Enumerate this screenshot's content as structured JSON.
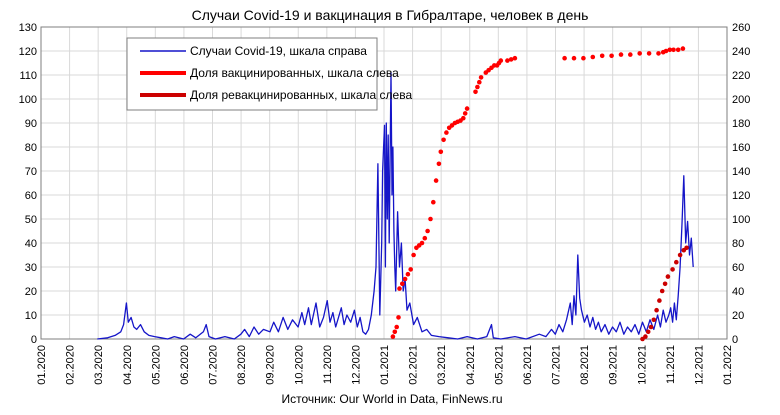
{
  "chart_data": {
    "type": "line",
    "title": "Случаи Covid-19 и вакцинация в Гибралтаре, человек в день",
    "source": "Источник: Our World in Data, FinNews.ru",
    "x_tick_labels": [
      "01.2020",
      "02.2020",
      "03.2020",
      "04.2020",
      "05.2020",
      "06.2020",
      "07.2020",
      "08.2020",
      "09.2020",
      "10.2020",
      "11.2020",
      "12.2020",
      "01.2021",
      "02.2021",
      "03.2021",
      "04.2021",
      "05.2021",
      "06.2021",
      "07.2021",
      "08.2021",
      "09.2021",
      "10.2021",
      "11.2021",
      "12.2021",
      "01.2022"
    ],
    "x_range": [
      "2020-01-01",
      "2022-01-01"
    ],
    "y_left": {
      "range": [
        0,
        130
      ],
      "ticks": [
        0,
        10,
        20,
        30,
        40,
        50,
        60,
        70,
        80,
        90,
        100,
        110,
        120,
        130
      ]
    },
    "y_right": {
      "range": [
        0,
        260
      ],
      "ticks": [
        0,
        20,
        40,
        60,
        80,
        100,
        120,
        140,
        160,
        180,
        200,
        220,
        240,
        260
      ]
    },
    "grid": true,
    "legend_position": "top-left",
    "series": [
      {
        "name": "Случаи Covid-19, шкала справа",
        "axis": "right",
        "color": "#1515c8",
        "points": [
          [
            "2020-03-01",
            0
          ],
          [
            "2020-03-12",
            1
          ],
          [
            "2020-03-20",
            3
          ],
          [
            "2020-03-26",
            6
          ],
          [
            "2020-03-29",
            12
          ],
          [
            "2020-04-01",
            30
          ],
          [
            "2020-04-03",
            14
          ],
          [
            "2020-04-06",
            18
          ],
          [
            "2020-04-09",
            10
          ],
          [
            "2020-04-12",
            8
          ],
          [
            "2020-04-16",
            12
          ],
          [
            "2020-04-20",
            6
          ],
          [
            "2020-04-25",
            3
          ],
          [
            "2020-05-01",
            2
          ],
          [
            "2020-05-08",
            1
          ],
          [
            "2020-05-15",
            0
          ],
          [
            "2020-05-22",
            2
          ],
          [
            "2020-06-01",
            0
          ],
          [
            "2020-06-08",
            4
          ],
          [
            "2020-06-14",
            1
          ],
          [
            "2020-06-22",
            6
          ],
          [
            "2020-06-25",
            12
          ],
          [
            "2020-06-28",
            2
          ],
          [
            "2020-07-05",
            0
          ],
          [
            "2020-07-15",
            2
          ],
          [
            "2020-07-25",
            0
          ],
          [
            "2020-08-01",
            4
          ],
          [
            "2020-08-05",
            8
          ],
          [
            "2020-08-10",
            2
          ],
          [
            "2020-08-15",
            10
          ],
          [
            "2020-08-20",
            4
          ],
          [
            "2020-08-25",
            8
          ],
          [
            "2020-09-01",
            6
          ],
          [
            "2020-09-05",
            14
          ],
          [
            "2020-09-10",
            6
          ],
          [
            "2020-09-15",
            18
          ],
          [
            "2020-09-20",
            8
          ],
          [
            "2020-09-25",
            16
          ],
          [
            "2020-10-01",
            10
          ],
          [
            "2020-10-05",
            22
          ],
          [
            "2020-10-08",
            12
          ],
          [
            "2020-10-12",
            26
          ],
          [
            "2020-10-15",
            12
          ],
          [
            "2020-10-20",
            30
          ],
          [
            "2020-10-24",
            10
          ],
          [
            "2020-10-28",
            18
          ],
          [
            "2020-11-01",
            32
          ],
          [
            "2020-11-04",
            14
          ],
          [
            "2020-11-07",
            22
          ],
          [
            "2020-11-10",
            10
          ],
          [
            "2020-11-13",
            18
          ],
          [
            "2020-11-16",
            26
          ],
          [
            "2020-11-19",
            12
          ],
          [
            "2020-11-22",
            20
          ],
          [
            "2020-11-26",
            14
          ],
          [
            "2020-11-30",
            24
          ],
          [
            "2020-12-03",
            10
          ],
          [
            "2020-12-06",
            18
          ],
          [
            "2020-12-09",
            6
          ],
          [
            "2020-12-12",
            4
          ],
          [
            "2020-12-15",
            8
          ],
          [
            "2020-12-18",
            20
          ],
          [
            "2020-12-21",
            40
          ],
          [
            "2020-12-23",
            60
          ],
          [
            "2020-12-25",
            146
          ],
          [
            "2020-12-27",
            20
          ],
          [
            "2020-12-29",
            80
          ],
          [
            "2020-12-30",
            140
          ],
          [
            "2021-01-01",
            178
          ],
          [
            "2021-01-02",
            60
          ],
          [
            "2021-01-03",
            180
          ],
          [
            "2021-01-04",
            100
          ],
          [
            "2021-01-05",
            170
          ],
          [
            "2021-01-06",
            80
          ],
          [
            "2021-01-08",
            222
          ],
          [
            "2021-01-09",
            120
          ],
          [
            "2021-01-10",
            160
          ],
          [
            "2021-01-11",
            90
          ],
          [
            "2021-01-12",
            60
          ],
          [
            "2021-01-13",
            40
          ],
          [
            "2021-01-15",
            106
          ],
          [
            "2021-01-17",
            60
          ],
          [
            "2021-01-19",
            80
          ],
          [
            "2021-01-21",
            40
          ],
          [
            "2021-01-23",
            50
          ],
          [
            "2021-01-25",
            24
          ],
          [
            "2021-01-28",
            30
          ],
          [
            "2021-02-01",
            12
          ],
          [
            "2021-02-05",
            18
          ],
          [
            "2021-02-10",
            6
          ],
          [
            "2021-02-15",
            8
          ],
          [
            "2021-02-20",
            3
          ],
          [
            "2021-02-28",
            2
          ],
          [
            "2021-03-10",
            1
          ],
          [
            "2021-03-20",
            0
          ],
          [
            "2021-03-30",
            2
          ],
          [
            "2021-04-10",
            0
          ],
          [
            "2021-04-20",
            2
          ],
          [
            "2021-04-25",
            12
          ],
          [
            "2021-04-27",
            1
          ],
          [
            "2021-05-05",
            0
          ],
          [
            "2021-05-20",
            2
          ],
          [
            "2021-06-01",
            0
          ],
          [
            "2021-06-15",
            4
          ],
          [
            "2021-06-22",
            2
          ],
          [
            "2021-06-28",
            8
          ],
          [
            "2021-07-02",
            4
          ],
          [
            "2021-07-06",
            12
          ],
          [
            "2021-07-10",
            6
          ],
          [
            "2021-07-14",
            16
          ],
          [
            "2021-07-18",
            30
          ],
          [
            "2021-07-20",
            12
          ],
          [
            "2021-07-22",
            36
          ],
          [
            "2021-07-24",
            20
          ],
          [
            "2021-07-26",
            70
          ],
          [
            "2021-07-28",
            34
          ],
          [
            "2021-07-30",
            24
          ],
          [
            "2021-08-02",
            14
          ],
          [
            "2021-08-05",
            20
          ],
          [
            "2021-08-08",
            10
          ],
          [
            "2021-08-11",
            18
          ],
          [
            "2021-08-14",
            8
          ],
          [
            "2021-08-17",
            14
          ],
          [
            "2021-08-20",
            6
          ],
          [
            "2021-08-24",
            12
          ],
          [
            "2021-08-28",
            4
          ],
          [
            "2021-09-01",
            10
          ],
          [
            "2021-09-05",
            6
          ],
          [
            "2021-09-09",
            14
          ],
          [
            "2021-09-13",
            4
          ],
          [
            "2021-09-17",
            10
          ],
          [
            "2021-09-21",
            6
          ],
          [
            "2021-09-25",
            12
          ],
          [
            "2021-09-29",
            4
          ],
          [
            "2021-10-03",
            14
          ],
          [
            "2021-10-07",
            6
          ],
          [
            "2021-10-11",
            16
          ],
          [
            "2021-10-15",
            8
          ],
          [
            "2021-10-19",
            20
          ],
          [
            "2021-10-22",
            10
          ],
          [
            "2021-10-25",
            24
          ],
          [
            "2021-10-28",
            14
          ],
          [
            "2021-10-31",
            20
          ],
          [
            "2021-11-02",
            26
          ],
          [
            "2021-11-04",
            14
          ],
          [
            "2021-11-06",
            30
          ],
          [
            "2021-11-08",
            16
          ],
          [
            "2021-11-10",
            36
          ],
          [
            "2021-11-12",
            60
          ],
          [
            "2021-11-14",
            96
          ],
          [
            "2021-11-16",
            136
          ],
          [
            "2021-11-18",
            80
          ],
          [
            "2021-11-20",
            98
          ],
          [
            "2021-11-22",
            70
          ],
          [
            "2021-11-24",
            84
          ],
          [
            "2021-11-26",
            60
          ]
        ]
      },
      {
        "name": "Доля вакцинированных, шкала слева",
        "axis": "left",
        "color": "#ff0000",
        "points": [
          [
            "2021-01-10",
            1
          ],
          [
            "2021-01-12",
            3
          ],
          [
            "2021-01-14",
            5
          ],
          [
            "2021-01-16",
            9
          ],
          [
            "2021-01-17",
            21
          ],
          [
            "2021-01-20",
            23
          ],
          [
            "2021-01-23",
            25
          ],
          [
            "2021-01-26",
            27
          ],
          [
            "2021-01-29",
            29
          ],
          [
            "2021-02-01",
            35
          ],
          [
            "2021-02-04",
            38
          ],
          [
            "2021-02-07",
            39
          ],
          [
            "2021-02-10",
            40
          ],
          [
            "2021-02-13",
            42
          ],
          [
            "2021-02-16",
            45
          ],
          [
            "2021-02-19",
            50
          ],
          [
            "2021-02-22",
            57
          ],
          [
            "2021-02-25",
            66
          ],
          [
            "2021-02-28",
            73
          ],
          [
            "2021-03-02",
            78
          ],
          [
            "2021-03-05",
            83
          ],
          [
            "2021-03-08",
            86
          ],
          [
            "2021-03-11",
            88
          ],
          [
            "2021-03-14",
            89
          ],
          [
            "2021-03-17",
            90
          ],
          [
            "2021-03-20",
            90.5
          ],
          [
            "2021-03-23",
            91
          ],
          [
            "2021-03-26",
            92
          ],
          [
            "2021-03-28",
            94
          ],
          [
            "2021-03-30",
            96
          ],
          [
            "2021-04-08",
            103
          ],
          [
            "2021-04-10",
            105
          ],
          [
            "2021-04-12",
            107
          ],
          [
            "2021-04-14",
            109
          ],
          [
            "2021-04-19",
            111
          ],
          [
            "2021-04-22",
            112
          ],
          [
            "2021-04-25",
            113
          ],
          [
            "2021-04-28",
            114
          ],
          [
            "2021-05-01",
            114
          ],
          [
            "2021-05-03",
            115
          ],
          [
            "2021-05-05",
            116
          ],
          [
            "2021-05-12",
            116
          ],
          [
            "2021-05-16",
            116.5
          ],
          [
            "2021-05-20",
            117
          ],
          [
            "2021-07-12",
            117
          ],
          [
            "2021-07-22",
            117
          ],
          [
            "2021-08-01",
            117
          ],
          [
            "2021-08-11",
            117.5
          ],
          [
            "2021-08-21",
            118
          ],
          [
            "2021-08-31",
            118
          ],
          [
            "2021-09-10",
            118.5
          ],
          [
            "2021-09-20",
            118.5
          ],
          [
            "2021-09-30",
            119
          ],
          [
            "2021-10-10",
            119
          ],
          [
            "2021-10-20",
            119
          ],
          [
            "2021-10-25",
            119.5
          ],
          [
            "2021-10-28",
            120
          ],
          [
            "2021-11-01",
            120.5
          ],
          [
            "2021-11-05",
            120.5
          ],
          [
            "2021-11-10",
            120.5
          ],
          [
            "2021-11-15",
            121
          ]
        ]
      },
      {
        "name": "Доля ревакцинированных, шкала слева",
        "axis": "left",
        "color": "#cc0000",
        "points": [
          [
            "2021-10-03",
            0
          ],
          [
            "2021-10-06",
            1
          ],
          [
            "2021-10-09",
            3
          ],
          [
            "2021-10-12",
            5
          ],
          [
            "2021-10-15",
            8
          ],
          [
            "2021-10-18",
            12
          ],
          [
            "2021-10-21",
            16
          ],
          [
            "2021-10-24",
            20
          ],
          [
            "2021-10-27",
            23
          ],
          [
            "2021-10-30",
            26
          ],
          [
            "2021-11-04",
            29
          ],
          [
            "2021-11-08",
            32
          ],
          [
            "2021-11-12",
            35
          ],
          [
            "2021-11-16",
            37
          ],
          [
            "2021-11-19",
            38
          ]
        ]
      }
    ]
  }
}
